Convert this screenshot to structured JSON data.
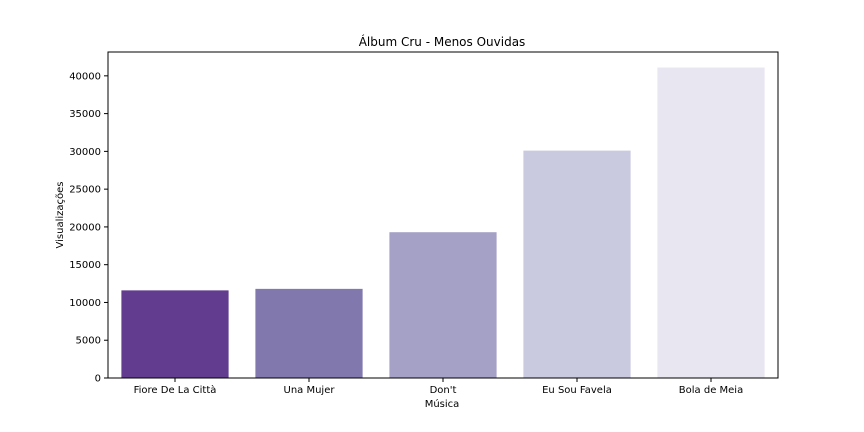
{
  "chart_data": {
    "type": "bar",
    "title": "Álbum Cru - Menos Ouvidas",
    "xlabel": "Música",
    "ylabel": "Visualizações",
    "categories": [
      "Fiore De La Città",
      "Una Mujer",
      "Don't",
      "Eu Sou Favela",
      "Bola de Meia"
    ],
    "values": [
      11600,
      11800,
      19300,
      30100,
      41100
    ],
    "colors": [
      "#623d8f",
      "#8178ad",
      "#a5a0c6",
      "#c9c9df",
      "#e8e7f1"
    ],
    "yticks": [
      0,
      5000,
      10000,
      15000,
      20000,
      25000,
      30000,
      35000,
      40000
    ],
    "ylim": [
      0,
      43155
    ],
    "grid": false,
    "legend": "none"
  }
}
